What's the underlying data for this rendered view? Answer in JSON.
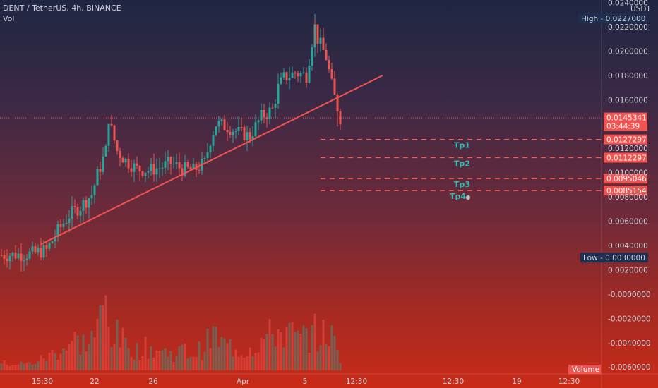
{
  "header": {
    "symbol_line": "DENT / TetherUS, 4h, BINANCE",
    "vol_label": "Vol"
  },
  "price_axis": {
    "currency": "USDT",
    "ticks": [
      "0.0240000",
      "0.0220000",
      "0.0200000",
      "0.0180000",
      "0.0160000",
      "0.0120000",
      "0.0100000",
      "0.0080000",
      "0.0060000",
      "0.0040000",
      "0.0020000",
      "-0.0000000",
      "-0.0020000",
      "-0.0040000",
      "-0.0060000"
    ],
    "high_tag": {
      "label": "High",
      "value": "0.0227000"
    },
    "low_tag": {
      "label": "Low",
      "value": "0.0030000"
    },
    "current_price": "0.0145341",
    "countdown": "03:44:39",
    "volume_label": "Volume"
  },
  "time_axis": {
    "ticks": [
      "15:30",
      "22",
      "26",
      "Apr",
      "5",
      "12:30",
      "12:30",
      "19",
      "12:30"
    ]
  },
  "targets": [
    {
      "name": "Tp1",
      "price": "0.0127297"
    },
    {
      "name": "Tp2",
      "price": "0.0112297"
    },
    {
      "name": "Tp3",
      "price": "0.0095046"
    },
    {
      "name": "Tp4",
      "price": "0.0085154"
    }
  ],
  "chart_data": {
    "type": "candlestick",
    "symbol": "DENT / TetherUS",
    "interval": "4h",
    "exchange": "BINANCE",
    "ylim": [
      -0.0065,
      0.0243
    ],
    "high": 0.0227,
    "low": 0.003,
    "last_price": 0.0145341,
    "trendline": {
      "start": [
        14,
        0.0041
      ],
      "end": [
        135,
        0.018
      ]
    },
    "price_path": [
      [
        0,
        0.0032
      ],
      [
        10,
        0.0033
      ],
      [
        16,
        0.0036
      ],
      [
        20,
        0.0052
      ],
      [
        24,
        0.0065
      ],
      [
        28,
        0.0072
      ],
      [
        32,
        0.0082
      ],
      [
        34,
        0.0098
      ],
      [
        37,
        0.0118
      ],
      [
        38,
        0.0145
      ],
      [
        39,
        0.0135
      ],
      [
        41,
        0.0118
      ],
      [
        44,
        0.011
      ],
      [
        48,
        0.0103
      ],
      [
        52,
        0.0102
      ],
      [
        56,
        0.0104
      ],
      [
        60,
        0.0108
      ],
      [
        64,
        0.0103
      ],
      [
        68,
        0.0102
      ],
      [
        72,
        0.0108
      ],
      [
        74,
        0.0127
      ],
      [
        76,
        0.014
      ],
      [
        80,
        0.0138
      ],
      [
        84,
        0.0133
      ],
      [
        88,
        0.013
      ],
      [
        92,
        0.0146
      ],
      [
        96,
        0.0152
      ],
      [
        98,
        0.017
      ],
      [
        100,
        0.0178
      ],
      [
        104,
        0.0182
      ],
      [
        108,
        0.018
      ],
      [
        110,
        0.0208
      ],
      [
        111,
        0.022
      ],
      [
        112,
        0.021
      ],
      [
        115,
        0.0195
      ],
      [
        117,
        0.0172
      ],
      [
        118,
        0.0162
      ],
      [
        120,
        0.0145
      ]
    ],
    "volume_path": [
      [
        0,
        0.1
      ],
      [
        10,
        0.1
      ],
      [
        16,
        0.2
      ],
      [
        22,
        0.35
      ],
      [
        26,
        0.45
      ],
      [
        30,
        0.4
      ],
      [
        34,
        0.6
      ],
      [
        36,
        0.9
      ],
      [
        37,
        1.0
      ],
      [
        38,
        0.7
      ],
      [
        40,
        0.55
      ],
      [
        44,
        0.4
      ],
      [
        48,
        0.3
      ],
      [
        52,
        0.35
      ],
      [
        56,
        0.3
      ],
      [
        60,
        0.25
      ],
      [
        64,
        0.3
      ],
      [
        68,
        0.25
      ],
      [
        72,
        0.35
      ],
      [
        75,
        0.55
      ],
      [
        78,
        0.4
      ],
      [
        82,
        0.35
      ],
      [
        86,
        0.3
      ],
      [
        90,
        0.4
      ],
      [
        94,
        0.5
      ],
      [
        98,
        0.6
      ],
      [
        102,
        0.55
      ],
      [
        106,
        0.45
      ],
      [
        110,
        0.6
      ],
      [
        113,
        0.5
      ],
      [
        116,
        0.6
      ],
      [
        118,
        0.4
      ],
      [
        120,
        0.2
      ]
    ]
  }
}
